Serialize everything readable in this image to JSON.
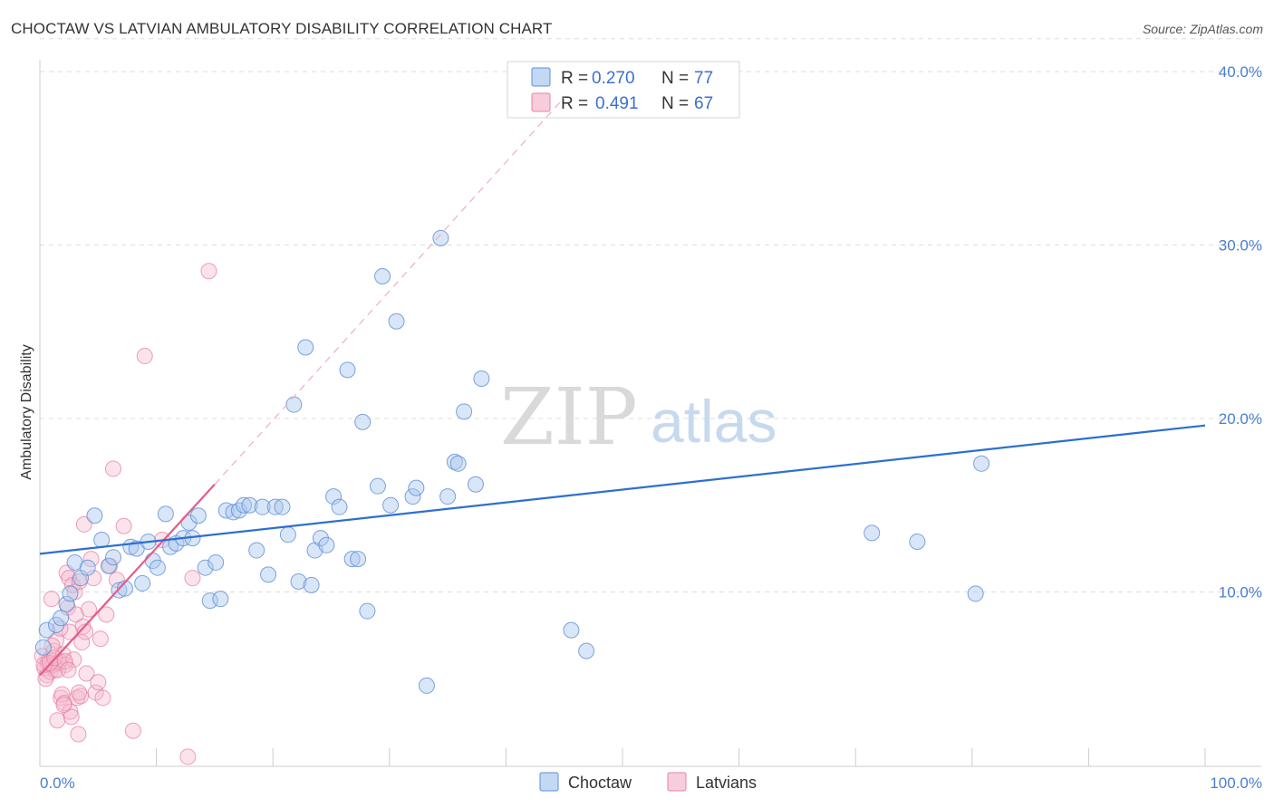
{
  "header": {
    "title": "CHOCTAW VS LATVIAN AMBULATORY DISABILITY CORRELATION CHART",
    "source": "Source: ZipAtlas.com"
  },
  "watermark": {
    "zip": "ZIP",
    "atlas": "atlas"
  },
  "legend": {
    "rows": [
      {
        "r_label": "R = ",
        "r_value": "0.270",
        "n_label": "N = ",
        "n_value": "77"
      },
      {
        "r_label": "R = ",
        "r_value": "0.491",
        "n_label": "N = ",
        "n_value": "67"
      }
    ]
  },
  "bottom_legend": {
    "items": [
      "Choctaw",
      "Latvians"
    ]
  },
  "colors": {
    "choctaw_fill": "#aac8ee",
    "choctaw_stroke": "#5b8fd6",
    "choctaw_line": "#2d6fd0",
    "latvian_fill": "#f5b8cc",
    "latvian_stroke": "#e880a2",
    "latvian_line": "#e35d8a",
    "grid": "#dddddd",
    "tick_text": "#4a7fcf"
  },
  "chart_data": {
    "type": "scatter",
    "title": "CHOCTAW VS LATVIAN AMBULATORY DISABILITY CORRELATION CHART",
    "xlabel": "",
    "ylabel": "Ambulatory Disability",
    "xlim": [
      0,
      100
    ],
    "ylim": [
      0,
      42
    ],
    "x_tick_labels": [
      "0.0%",
      "100.0%"
    ],
    "y_ticks": [
      10,
      20,
      30,
      40
    ],
    "y_tick_labels": [
      "10.0%",
      "20.0%",
      "30.0%",
      "40.0%"
    ],
    "grid": true,
    "legend_position": "top-center",
    "series": [
      {
        "name": "Choctaw",
        "R": 0.27,
        "N": 77,
        "trend": {
          "x": [
            0,
            100
          ],
          "y": [
            12.2,
            19.6
          ]
        },
        "points": [
          [
            0.6,
            7.8
          ],
          [
            1.4,
            8.1
          ],
          [
            1.8,
            8.5
          ],
          [
            2.3,
            9.3
          ],
          [
            2.6,
            9.9
          ],
          [
            3.0,
            11.7
          ],
          [
            3.5,
            10.8
          ],
          [
            4.1,
            11.4
          ],
          [
            4.7,
            14.4
          ],
          [
            5.3,
            13.0
          ],
          [
            5.9,
            11.5
          ],
          [
            6.3,
            12.0
          ],
          [
            6.8,
            10.1
          ],
          [
            7.3,
            10.2
          ],
          [
            7.8,
            12.6
          ],
          [
            8.3,
            12.5
          ],
          [
            8.8,
            10.5
          ],
          [
            9.3,
            12.9
          ],
          [
            9.7,
            11.8
          ],
          [
            10.1,
            11.4
          ],
          [
            10.8,
            14.5
          ],
          [
            11.2,
            12.6
          ],
          [
            11.7,
            12.8
          ],
          [
            12.3,
            13.1
          ],
          [
            12.8,
            14.0
          ],
          [
            13.1,
            13.1
          ],
          [
            13.6,
            14.4
          ],
          [
            14.2,
            11.4
          ],
          [
            14.6,
            9.5
          ],
          [
            15.1,
            11.7
          ],
          [
            15.5,
            9.6
          ],
          [
            16.0,
            14.7
          ],
          [
            16.6,
            14.6
          ],
          [
            17.1,
            14.7
          ],
          [
            17.5,
            15.0
          ],
          [
            18.0,
            15.0
          ],
          [
            18.6,
            12.4
          ],
          [
            19.1,
            14.9
          ],
          [
            19.6,
            11.0
          ],
          [
            20.2,
            14.9
          ],
          [
            20.8,
            14.9
          ],
          [
            21.3,
            13.3
          ],
          [
            21.8,
            20.8
          ],
          [
            22.2,
            10.6
          ],
          [
            22.8,
            24.1
          ],
          [
            23.3,
            10.4
          ],
          [
            23.6,
            12.4
          ],
          [
            24.1,
            13.1
          ],
          [
            24.6,
            12.7
          ],
          [
            25.2,
            15.5
          ],
          [
            25.7,
            14.9
          ],
          [
            26.4,
            22.8
          ],
          [
            26.8,
            11.9
          ],
          [
            27.3,
            11.9
          ],
          [
            27.7,
            19.8
          ],
          [
            28.1,
            8.9
          ],
          [
            29.0,
            16.1
          ],
          [
            29.4,
            28.2
          ],
          [
            30.1,
            15.0
          ],
          [
            30.6,
            25.6
          ],
          [
            32.0,
            15.5
          ],
          [
            32.3,
            16.0
          ],
          [
            33.2,
            4.6
          ],
          [
            34.4,
            30.4
          ],
          [
            35.0,
            15.5
          ],
          [
            35.6,
            17.5
          ],
          [
            35.9,
            17.4
          ],
          [
            36.4,
            20.4
          ],
          [
            37.4,
            16.2
          ],
          [
            37.9,
            22.3
          ],
          [
            45.6,
            7.8
          ],
          [
            46.9,
            6.6
          ],
          [
            71.4,
            13.4
          ],
          [
            75.3,
            12.9
          ],
          [
            80.3,
            9.9
          ],
          [
            80.8,
            17.4
          ],
          [
            0.3,
            6.8
          ]
        ]
      },
      {
        "name": "Latvians",
        "R": 0.491,
        "N": 67,
        "trend": {
          "x": [
            0,
            15
          ],
          "y": [
            5.2,
            16.2
          ]
        },
        "trend_extension": {
          "x": [
            15,
            45
          ],
          "y": [
            16.2,
            38.5
          ]
        },
        "points": [
          [
            0.2,
            6.3
          ],
          [
            0.4,
            5.6
          ],
          [
            0.6,
            5.2
          ],
          [
            0.7,
            5.9
          ],
          [
            0.8,
            6.1
          ],
          [
            0.9,
            5.4
          ],
          [
            1.0,
            9.6
          ],
          [
            1.1,
            5.8
          ],
          [
            1.2,
            6.6
          ],
          [
            1.3,
            5.5
          ],
          [
            1.4,
            7.2
          ],
          [
            1.5,
            2.6
          ],
          [
            1.6,
            5.9
          ],
          [
            1.7,
            6.0
          ],
          [
            1.8,
            3.9
          ],
          [
            1.9,
            4.1
          ],
          [
            2.0,
            6.4
          ],
          [
            2.1,
            3.6
          ],
          [
            2.2,
            5.8
          ],
          [
            2.3,
            11.1
          ],
          [
            2.4,
            9.1
          ],
          [
            2.5,
            10.8
          ],
          [
            2.6,
            3.1
          ],
          [
            2.7,
            2.8
          ],
          [
            2.8,
            10.4
          ],
          [
            2.9,
            6.1
          ],
          [
            3.0,
            10.0
          ],
          [
            3.1,
            8.7
          ],
          [
            3.2,
            3.9
          ],
          [
            3.3,
            1.8
          ],
          [
            3.4,
            10.6
          ],
          [
            3.5,
            4.0
          ],
          [
            3.6,
            7.1
          ],
          [
            3.7,
            8.0
          ],
          [
            3.8,
            13.9
          ],
          [
            3.9,
            7.7
          ],
          [
            4.0,
            5.3
          ],
          [
            4.2,
            9.0
          ],
          [
            4.4,
            11.9
          ],
          [
            4.6,
            10.8
          ],
          [
            4.8,
            4.2
          ],
          [
            5.0,
            4.8
          ],
          [
            5.2,
            7.3
          ],
          [
            5.4,
            3.9
          ],
          [
            5.7,
            8.7
          ],
          [
            6.0,
            11.5
          ],
          [
            6.3,
            17.1
          ],
          [
            6.6,
            10.7
          ],
          [
            7.2,
            13.8
          ],
          [
            8.0,
            2.0
          ],
          [
            9.0,
            23.6
          ],
          [
            10.5,
            13.0
          ],
          [
            12.7,
            0.5
          ],
          [
            13.1,
            10.8
          ],
          [
            14.5,
            28.5
          ],
          [
            0.5,
            5.0
          ],
          [
            1.05,
            6.9
          ],
          [
            1.55,
            5.5
          ],
          [
            2.05,
            3.5
          ],
          [
            2.55,
            7.7
          ],
          [
            0.35,
            5.8
          ],
          [
            0.85,
            5.9
          ],
          [
            1.25,
            6.2
          ],
          [
            1.75,
            7.9
          ],
          [
            2.15,
            6.0
          ],
          [
            2.45,
            5.5
          ],
          [
            3.35,
            4.2
          ]
        ]
      }
    ]
  }
}
